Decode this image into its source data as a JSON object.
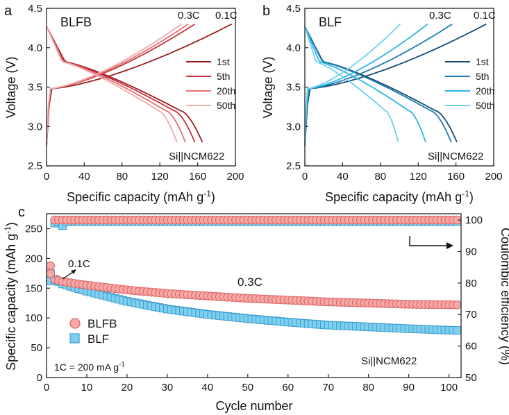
{
  "chart_data": [
    {
      "panel": "a",
      "type": "line",
      "title": "BLFB",
      "xlabel": "Specific capacity (mAh g",
      "xlabel_sup": "-1",
      "xlabel_end": ")",
      "ylabel": "Voltage (V)",
      "xlim": [
        0,
        200
      ],
      "ylim": [
        2.5,
        4.5
      ],
      "xticks": [
        "0",
        "40",
        "80",
        "120",
        "160",
        "200"
      ],
      "yticks": [
        "2.5",
        "3.0",
        "3.5",
        "4.0",
        "4.5"
      ],
      "rate_labels": [
        "0.3C",
        "0.1C"
      ],
      "cell": "Si||NCM622",
      "series": [
        {
          "name": "1st",
          "color": "#9b1c1f",
          "charge_cap": 196,
          "discharge_cap": 165
        },
        {
          "name": "5th",
          "color": "#c4333a",
          "charge_cap": 157,
          "discharge_cap": 157
        },
        {
          "name": "20th",
          "color": "#e07276",
          "charge_cap": 150,
          "discharge_cap": 147
        },
        {
          "name": "50th",
          "color": "#f0a9ab",
          "charge_cap": 143,
          "discharge_cap": 138
        }
      ]
    },
    {
      "panel": "b",
      "type": "line",
      "title": "BLF",
      "xlabel": "Specific capacity (mAh g",
      "xlabel_sup": "-1",
      "xlabel_end": ")",
      "ylabel": "Voltage (V)",
      "xlim": [
        0,
        200
      ],
      "ylim": [
        2.5,
        4.5
      ],
      "xticks": [
        "0",
        "40",
        "80",
        "120",
        "160",
        "200"
      ],
      "yticks": [
        "2.5",
        "3.0",
        "3.5",
        "4.0",
        "4.5"
      ],
      "rate_labels": [
        "0.3C",
        "0.1C"
      ],
      "cell": "Si||NCM622",
      "series": [
        {
          "name": "1st",
          "color": "#164a6e",
          "charge_cap": 192,
          "discharge_cap": 161
        },
        {
          "name": "5th",
          "color": "#1f7ab0",
          "charge_cap": 156,
          "discharge_cap": 155
        },
        {
          "name": "20th",
          "color": "#2bb3e6",
          "charge_cap": 130,
          "discharge_cap": 128
        },
        {
          "name": "50th",
          "color": "#6bd2ef",
          "charge_cap": 101,
          "discharge_cap": 99
        }
      ]
    },
    {
      "panel": "c",
      "type": "scatter",
      "xlabel": "Cycle number",
      "ylabel": "Specific capacity (mAh g",
      "ylabel_sup": "-1",
      "ylabel_end": ")",
      "y2label": "Coulombic efficiency (%)",
      "xlim": [
        0,
        103
      ],
      "ylim": [
        0,
        275
      ],
      "y2lim": [
        50,
        102
      ],
      "xticks": [
        "0",
        "10",
        "20",
        "30",
        "40",
        "50",
        "60",
        "70",
        "80",
        "90",
        "100"
      ],
      "yticks": [
        "0",
        "50",
        "100",
        "150",
        "200",
        "250"
      ],
      "y2ticks": [
        "50",
        "60",
        "70",
        "80",
        "90",
        "100"
      ],
      "annotations": {
        "rate1": "0.1C",
        "rate2": "0.3C",
        "note": "1C = 200 mA g",
        "note_sup": "-1",
        "cell": "Si||NCM622"
      },
      "series": [
        {
          "name": "BLFB",
          "marker": "circle",
          "fill": "#f6a8a6",
          "stroke": "#d9605e",
          "first_capacity": 188,
          "capacity_points": [
            [
              2,
              165
            ],
            [
              3,
              163
            ],
            [
              5,
              160
            ],
            [
              10,
              155
            ],
            [
              20,
              147
            ],
            [
              30,
              141
            ],
            [
              40,
              137
            ],
            [
              50,
              133
            ],
            [
              60,
              130
            ],
            [
              70,
              127
            ],
            [
              80,
              125
            ],
            [
              90,
              123
            ],
            [
              102,
              122
            ]
          ],
          "ce_first": 83,
          "ce_second": 100,
          "ce_steady": 100
        },
        {
          "name": "BLF",
          "marker": "square",
          "fill": "#7fd0f0",
          "stroke": "#3a9ccc",
          "first_capacity": 162,
          "capacity_points": [
            [
              2,
              165
            ],
            [
              4,
              157
            ],
            [
              5,
              155
            ],
            [
              10,
              145
            ],
            [
              20,
              128
            ],
            [
              30,
              115
            ],
            [
              40,
              106
            ],
            [
              50,
              99
            ],
            [
              60,
              93
            ],
            [
              70,
              88
            ],
            [
              80,
              85
            ],
            [
              90,
              82
            ],
            [
              102,
              79
            ]
          ],
          "ce_first": 83,
          "ce_second": 99,
          "ce_steady": 99.5
        }
      ]
    }
  ],
  "panel_letters": [
    "a",
    "b",
    "c"
  ]
}
